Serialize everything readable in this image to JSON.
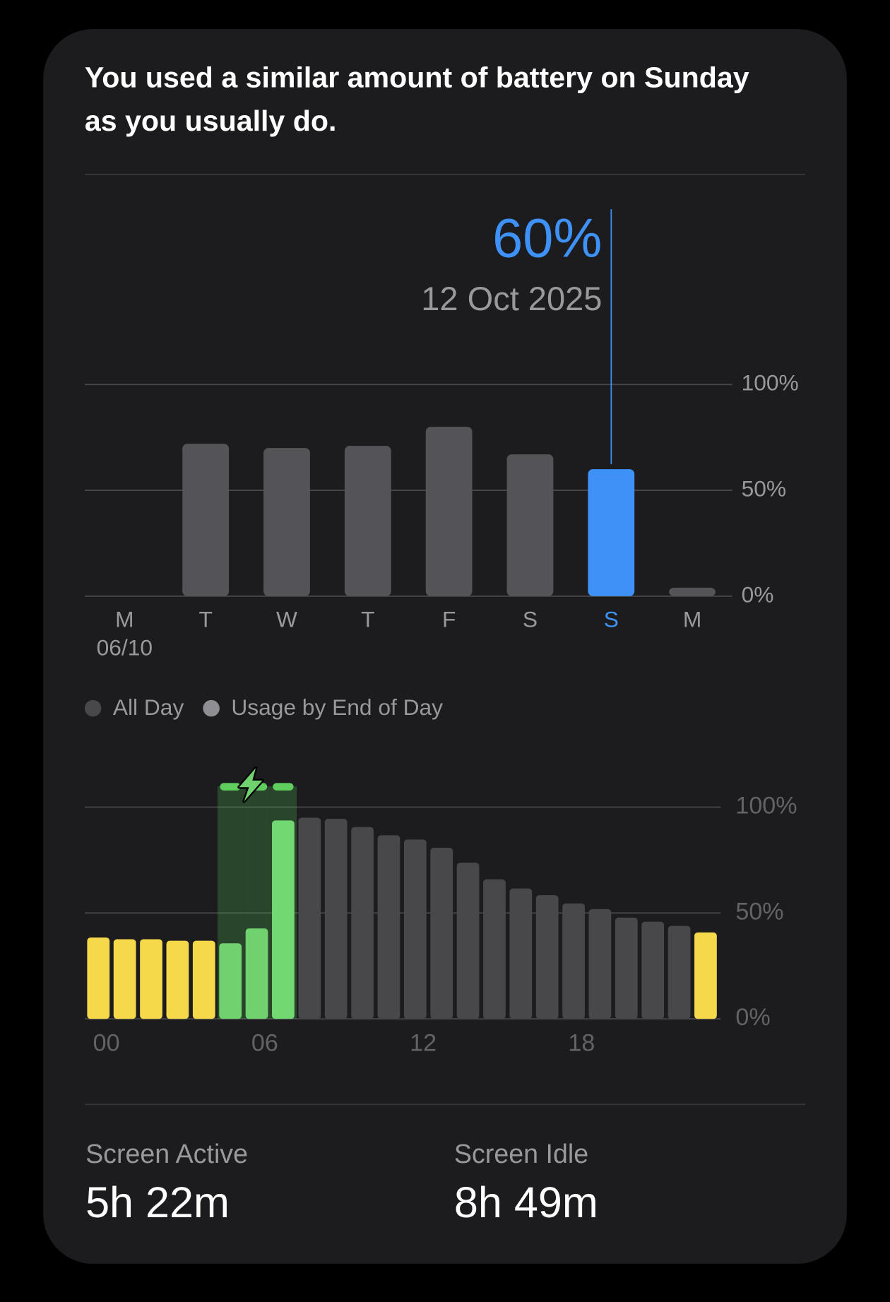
{
  "summary_lines": [
    "You used a similar amount of battery on Sunday",
    "as you usually do."
  ],
  "chart_data": [
    {
      "type": "bar",
      "categories": [
        "M",
        "T",
        "W",
        "T",
        "F",
        "S",
        "S",
        "M"
      ],
      "x_sublabels": [
        "06/10",
        null,
        null,
        null,
        null,
        null,
        null,
        null
      ],
      "values": [
        null,
        72,
        70,
        71,
        80,
        67,
        60,
        4
      ],
      "value_labels": [
        null,
        null,
        null,
        null,
        null,
        null,
        "60%",
        null
      ],
      "selected": 6,
      "selected_label": "12 Oct 2025",
      "color": "#545458",
      "highlight_color": "#3d91f7",
      "ylim": [
        0,
        100
      ],
      "yticks": [
        {
          "value": 0,
          "label": "0%"
        },
        {
          "value": 50,
          "label": "50%"
        },
        {
          "value": 100,
          "label": "100%"
        }
      ],
      "grid": true
    },
    {
      "type": "bar",
      "legend": [
        {
          "label": "All Day",
          "color": "#48484a"
        },
        {
          "label": "Usage by End of Day",
          "color": "#8e8e93"
        }
      ],
      "categories": [
        "00",
        null,
        null,
        null,
        null,
        null,
        "06",
        null,
        null,
        null,
        null,
        null,
        "12",
        null,
        null,
        null,
        null,
        null,
        "18",
        null,
        null,
        null,
        null,
        null
      ],
      "values": [
        38.4,
        37.6,
        37.6,
        36.9,
        36.9,
        35.7,
        42.7,
        93.7,
        95,
        94.5,
        90.6,
        86.7,
        84.7,
        80.8,
        73.7,
        65.9,
        61.6,
        58.4,
        54.5,
        51.8,
        47.8,
        45.9,
        43.9,
        40.8
      ],
      "colors": [
        "#f6d94a",
        "#f6d94a",
        "#f6d94a",
        "#f6d94a",
        "#f6d94a",
        "#6fd26f",
        "#6fd26f",
        "#72d972",
        "#48484a",
        "#48484a",
        "#48484a",
        "#48484a",
        "#48484a",
        "#48484a",
        "#48484a",
        "#48484a",
        "#48484a",
        "#48484a",
        "#48484a",
        "#48484a",
        "#48484a",
        "#48484a",
        "#48484a",
        "#f6d94a"
      ],
      "charging": [
        false,
        false,
        false,
        false,
        false,
        true,
        true,
        true,
        false,
        false,
        false,
        false,
        false,
        false,
        false,
        false,
        false,
        false,
        false,
        false,
        false,
        false,
        false,
        false
      ],
      "ylim": [
        0,
        100
      ],
      "yticks": [
        {
          "value": 0,
          "label": "0%"
        },
        {
          "value": 50,
          "label": "50%"
        },
        {
          "value": 100,
          "label": "100%"
        }
      ],
      "grid": true
    }
  ],
  "stats": [
    {
      "label": "Screen Active",
      "value": "5h 22m"
    },
    {
      "label": "Screen Idle",
      "value": "8h 49m"
    }
  ]
}
